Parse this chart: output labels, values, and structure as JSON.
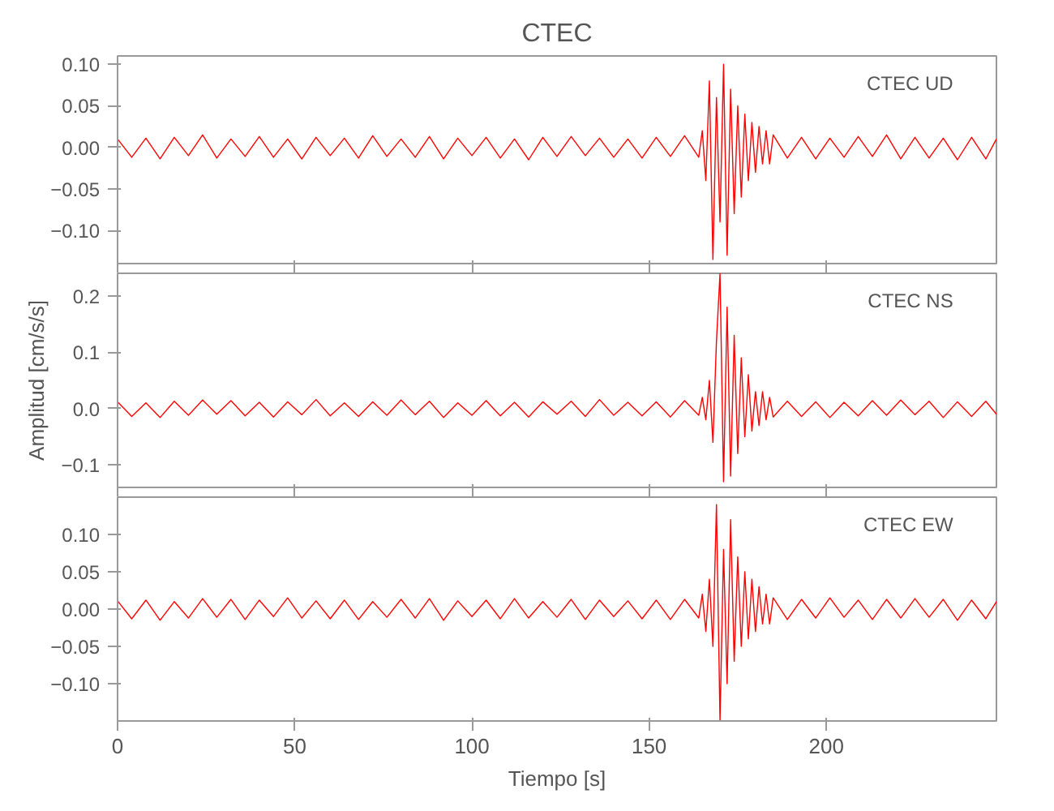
{
  "chart_data": [
    {
      "type": "line",
      "title": "CTEC",
      "annotations": [
        "CTEC   UD"
      ],
      "tick_labels": "y",
      "grid": false,
      "x": [
        0,
        4,
        8,
        12,
        16,
        20,
        24,
        28,
        32,
        36,
        40,
        44,
        48,
        52,
        56,
        60,
        64,
        68,
        72,
        76,
        80,
        84,
        88,
        92,
        96,
        100,
        104,
        108,
        112,
        116,
        120,
        124,
        128,
        132,
        136,
        140,
        144,
        148,
        152,
        156,
        160,
        164,
        165,
        166,
        167,
        168,
        169,
        170,
        171,
        172,
        173,
        174,
        175,
        176,
        177,
        178,
        179,
        180,
        181,
        182,
        183,
        184,
        185,
        189,
        193,
        197,
        201,
        205,
        209,
        213,
        217,
        221,
        225,
        229,
        233,
        237,
        241,
        245,
        248
      ],
      "series": [
        {
          "color": "#ff0000",
          "values": [
            0.01,
            -0.012,
            0.011,
            -0.014,
            0.012,
            -0.01,
            0.015,
            -0.013,
            0.01,
            -0.011,
            0.013,
            -0.012,
            0.01,
            -0.014,
            0.012,
            -0.01,
            0.011,
            -0.013,
            0.014,
            -0.011,
            0.01,
            -0.012,
            0.013,
            -0.014,
            0.011,
            -0.01,
            0.012,
            -0.013,
            0.01,
            -0.015,
            0.012,
            -0.011,
            0.013,
            -0.01,
            0.011,
            -0.012,
            0.01,
            -0.013,
            0.012,
            -0.011,
            0.014,
            -0.012,
            0.02,
            -0.04,
            0.08,
            -0.135,
            0.06,
            -0.09,
            0.1,
            -0.13,
            0.07,
            -0.08,
            0.05,
            -0.06,
            0.04,
            -0.04,
            0.03,
            -0.03,
            0.025,
            -0.02,
            0.02,
            -0.02,
            0.015,
            -0.013,
            0.012,
            -0.014,
            0.011,
            -0.012,
            0.013,
            -0.011,
            0.015,
            -0.014,
            0.012,
            -0.013,
            0.011,
            -0.015,
            0.012,
            -0.014,
            0.01
          ]
        }
      ],
      "xlim": [
        0,
        248
      ],
      "ylim": [
        -0.14,
        0.11
      ],
      "yticks": [
        {
          "value": -0.1,
          "label": "−0.10"
        },
        {
          "value": -0.05,
          "label": "−0.05"
        },
        {
          "value": 0,
          "label": "0.00"
        },
        {
          "value": 0.05,
          "label": "0.05"
        },
        {
          "value": 0.1,
          "label": "0.10"
        }
      ],
      "xticks": [
        0,
        50,
        100,
        150,
        200
      ]
    },
    {
      "type": "line",
      "ylabel": "Amplitud [cm/s/s]",
      "annotations": [
        "CTEC   NS"
      ],
      "tick_labels": "y",
      "grid": false,
      "x": [
        0,
        4,
        8,
        12,
        16,
        20,
        24,
        28,
        32,
        36,
        40,
        44,
        48,
        52,
        56,
        60,
        64,
        68,
        72,
        76,
        80,
        84,
        88,
        92,
        96,
        100,
        104,
        108,
        112,
        116,
        120,
        124,
        128,
        132,
        136,
        140,
        144,
        148,
        152,
        156,
        160,
        164,
        165,
        166,
        167,
        168,
        169,
        170,
        171,
        172,
        173,
        174,
        175,
        176,
        177,
        178,
        179,
        180,
        181,
        182,
        183,
        184,
        185,
        189,
        193,
        197,
        201,
        205,
        209,
        213,
        217,
        221,
        225,
        229,
        233,
        237,
        241,
        245,
        248
      ],
      "series": [
        {
          "color": "#ff0000",
          "values": [
            0.012,
            -0.014,
            0.01,
            -0.016,
            0.013,
            -0.012,
            0.015,
            -0.01,
            0.014,
            -0.013,
            0.011,
            -0.015,
            0.012,
            -0.011,
            0.016,
            -0.013,
            0.01,
            -0.014,
            0.012,
            -0.012,
            0.015,
            -0.011,
            0.013,
            -0.016,
            0.01,
            -0.012,
            0.014,
            -0.013,
            0.011,
            -0.015,
            0.012,
            -0.01,
            0.013,
            -0.014,
            0.016,
            -0.012,
            0.011,
            -0.013,
            0.012,
            -0.015,
            0.014,
            -0.012,
            0.02,
            -0.02,
            0.05,
            -0.06,
            0.12,
            0.24,
            -0.13,
            0.18,
            -0.12,
            0.13,
            -0.08,
            0.09,
            -0.05,
            0.06,
            -0.04,
            0.03,
            -0.03,
            0.03,
            -0.02,
            0.02,
            -0.015,
            0.013,
            -0.014,
            0.012,
            -0.016,
            0.011,
            -0.013,
            0.014,
            -0.012,
            0.015,
            -0.011,
            0.013,
            -0.016,
            0.012,
            -0.014,
            0.013,
            -0.01
          ]
        }
      ],
      "xlim": [
        0,
        248
      ],
      "ylim": [
        -0.14,
        0.24
      ],
      "yticks": [
        {
          "value": -0.1,
          "label": "−0.1"
        },
        {
          "value": 0,
          "label": "0.0"
        },
        {
          "value": 0.1,
          "label": "0.1"
        },
        {
          "value": 0.2,
          "label": "0.2"
        }
      ],
      "xticks": [
        0,
        50,
        100,
        150,
        200
      ]
    },
    {
      "type": "line",
      "xlabel": "Tiempo [s]",
      "annotations": [
        "CTEC   EW"
      ],
      "grid": false,
      "x": [
        0,
        4,
        8,
        12,
        16,
        20,
        24,
        28,
        32,
        36,
        40,
        44,
        48,
        52,
        56,
        60,
        64,
        68,
        72,
        76,
        80,
        84,
        88,
        92,
        96,
        100,
        104,
        108,
        112,
        116,
        120,
        124,
        128,
        132,
        136,
        140,
        144,
        148,
        152,
        156,
        160,
        164,
        165,
        166,
        167,
        168,
        169,
        170,
        171,
        172,
        173,
        174,
        175,
        176,
        177,
        178,
        179,
        180,
        181,
        182,
        183,
        184,
        185,
        189,
        193,
        197,
        201,
        205,
        209,
        213,
        217,
        221,
        225,
        229,
        233,
        237,
        241,
        245,
        248
      ],
      "series": [
        {
          "color": "#ff0000",
          "values": [
            0.011,
            -0.013,
            0.012,
            -0.015,
            0.01,
            -0.012,
            0.014,
            -0.011,
            0.013,
            -0.014,
            0.012,
            -0.01,
            0.015,
            -0.012,
            0.011,
            -0.013,
            0.012,
            -0.014,
            0.01,
            -0.011,
            0.013,
            -0.012,
            0.014,
            -0.015,
            0.011,
            -0.01,
            0.012,
            -0.013,
            0.014,
            -0.012,
            0.01,
            -0.011,
            0.013,
            -0.014,
            0.012,
            -0.01,
            0.011,
            -0.013,
            0.012,
            -0.014,
            0.013,
            -0.012,
            0.02,
            -0.03,
            0.04,
            -0.05,
            0.14,
            -0.15,
            0.08,
            -0.1,
            0.12,
            -0.07,
            0.07,
            -0.05,
            0.05,
            -0.04,
            0.04,
            -0.03,
            0.03,
            -0.02,
            0.02,
            -0.02,
            0.015,
            -0.014,
            0.013,
            -0.012,
            0.015,
            -0.011,
            0.012,
            -0.014,
            0.013,
            -0.012,
            0.014,
            -0.011,
            0.013,
            -0.015,
            0.012,
            -0.013,
            0.01
          ]
        }
      ],
      "xlim": [
        0,
        248
      ],
      "ylim": [
        -0.15,
        0.15
      ],
      "yticks": [
        {
          "value": -0.1,
          "label": "−0.10"
        },
        {
          "value": -0.05,
          "label": "−0.05"
        },
        {
          "value": 0,
          "label": "0.00"
        },
        {
          "value": 0.05,
          "label": "0.05"
        },
        {
          "value": 0.1,
          "label": "0.10"
        }
      ],
      "xticks": [
        0,
        50,
        100,
        150,
        200
      ]
    }
  ]
}
